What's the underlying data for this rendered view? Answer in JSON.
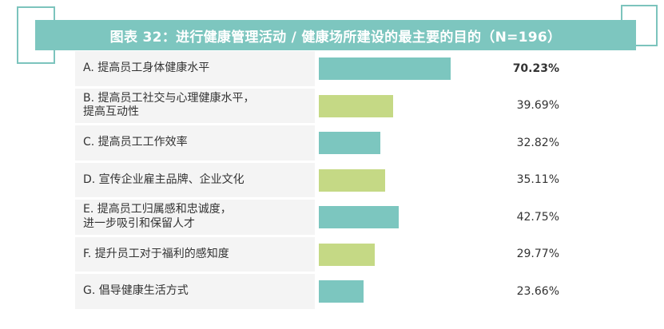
{
  "chart_data": {
    "type": "bar",
    "title": "图表 32：进行健康管理活动 / 健康场所建设的最主要的目的（N=196）",
    "categories": [
      "A. 提高员工身体健康水平",
      "B. 提高员工社交与心理健康水平，提高互动性",
      "C. 提高员工工作效率",
      "D. 宣传企业雇主品牌、企业文化",
      "E. 提高员工归属感和忠诚度，进一步吸引和保留人才",
      "F. 提升员工对于福利的感知度",
      "G. 倡导健康生活方式"
    ],
    "label_lines": [
      [
        "A. 提高员工身体健康水平"
      ],
      [
        "B. 提高员工社交与心理健康水平，",
        "提高互动性"
      ],
      [
        "C. 提高员工工作效率"
      ],
      [
        "D. 宣传企业雇主品牌、企业文化"
      ],
      [
        "E. 提高员工归属感和忠诚度，",
        "进一步吸引和保留人才"
      ],
      [
        "F. 提升员工对于福利的感知度"
      ],
      [
        "G. 倡导健康生活方式"
      ]
    ],
    "values": [
      70.23,
      39.69,
      32.82,
      35.11,
      42.75,
      29.77,
      23.66
    ],
    "value_labels": [
      "70.23%",
      "39.69%",
      "32.82%",
      "35.11%",
      "42.75%",
      "29.77%",
      "23.66%"
    ],
    "bar_colors": [
      "#7cc6bf",
      "#c5d985",
      "#7cc6bf",
      "#c5d985",
      "#7cc6bf",
      "#c5d985",
      "#7cc6bf"
    ],
    "highlight_index": 0,
    "xlim": [
      0,
      100
    ]
  }
}
